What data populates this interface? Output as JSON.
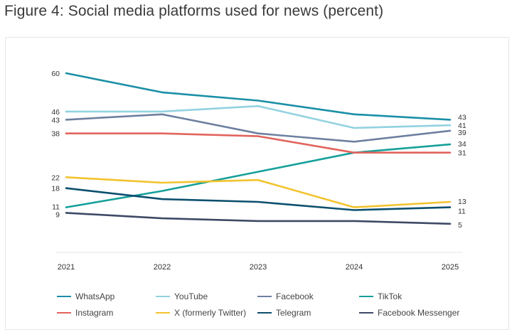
{
  "title": "Figure 4: Social media platforms used for news (percent)",
  "chart_data": {
    "type": "line",
    "x": [
      "2021",
      "2022",
      "2023",
      "2024",
      "2025"
    ],
    "ylim": [
      0,
      65
    ],
    "grid": false,
    "legend_position": "bottom",
    "left_labels": [
      "60",
      "46",
      "43",
      "38",
      "22",
      "18",
      "11",
      "9"
    ],
    "right_labels": [
      "43",
      "41",
      "39",
      "34",
      "31",
      "13",
      "11",
      "5"
    ],
    "series": [
      {
        "name": "WhatsApp",
        "color": "#1a8fa6",
        "values": [
          60,
          53,
          50,
          45,
          43
        ]
      },
      {
        "name": "YouTube",
        "color": "#92d2e0",
        "values": [
          46,
          46,
          48,
          40,
          41
        ]
      },
      {
        "name": "Facebook",
        "color": "#6e80a0",
        "values": [
          43,
          45,
          38,
          35,
          39
        ]
      },
      {
        "name": "TikTok",
        "color": "#16a09a",
        "values": [
          11,
          17,
          24,
          31,
          34
        ]
      },
      {
        "name": "Instagram",
        "color": "#e2645e",
        "values": [
          38,
          38,
          37,
          31,
          31
        ]
      },
      {
        "name": "X (formerly Twitter)",
        "color": "#f2c32e",
        "values": [
          22,
          20,
          21,
          11,
          13
        ]
      },
      {
        "name": "Telegram",
        "color": "#0c4f6e",
        "values": [
          18,
          14,
          13,
          10,
          11
        ]
      },
      {
        "name": "Facebook Messenger",
        "color": "#3d4a66",
        "values": [
          9,
          7,
          6,
          6,
          5
        ]
      }
    ]
  }
}
